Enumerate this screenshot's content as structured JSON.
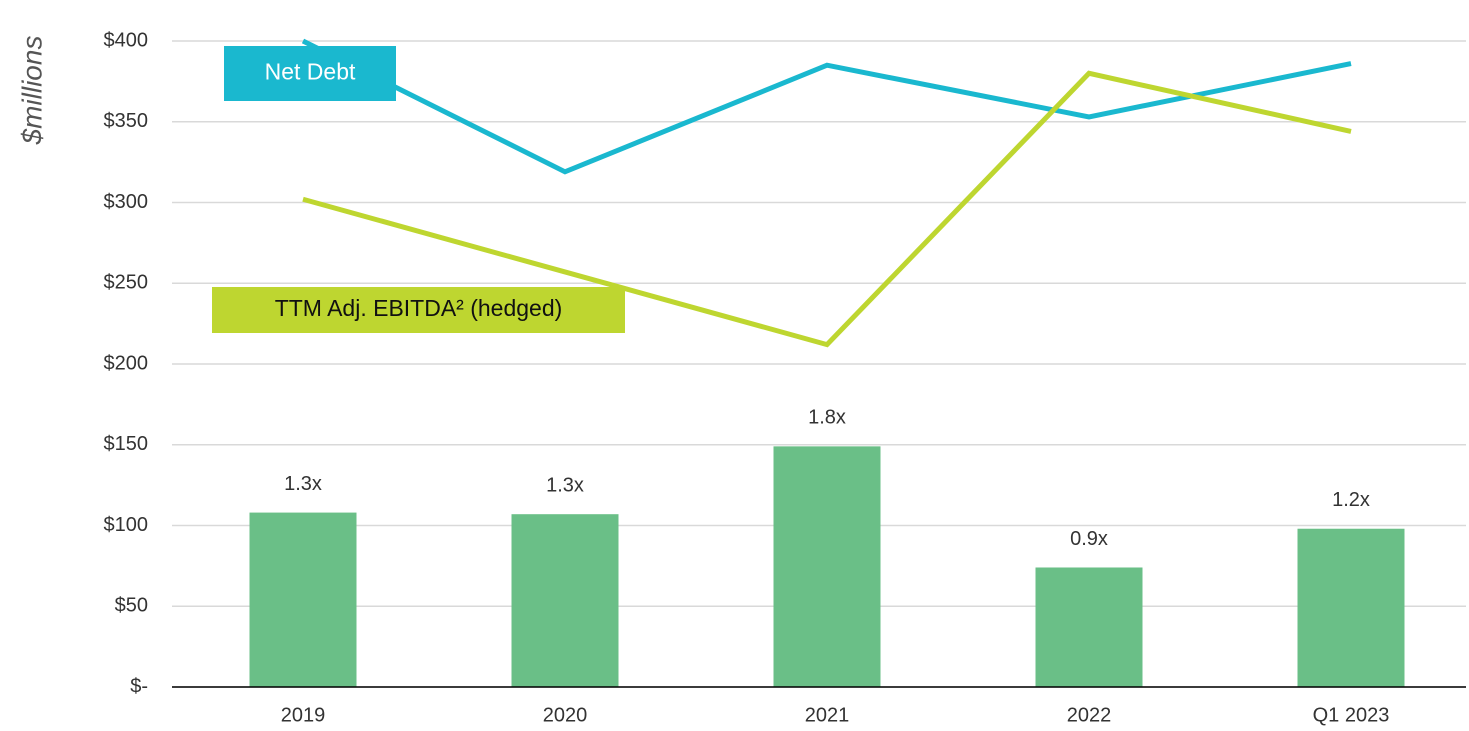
{
  "chart_data": {
    "type": "bar-line",
    "y_axis_label": "$millions",
    "categories": [
      "2019",
      "2020",
      "2021",
      "2022",
      "Q1 2023"
    ],
    "bars": {
      "color": "#6abf87",
      "values": [
        108,
        107,
        149,
        74,
        98
      ],
      "value_labels": [
        "1.3x",
        "1.3x",
        "1.8x",
        "0.9x",
        "1.2x"
      ]
    },
    "series": [
      {
        "name": "Net Debt",
        "color": "#1ab8cf",
        "values": [
          400,
          319,
          385,
          353,
          386
        ]
      },
      {
        "name": "TTM Adj. EBITDA² (hedged)",
        "color": "#bed630",
        "values": [
          302,
          257,
          212,
          380,
          344
        ]
      }
    ],
    "ylim": [
      0,
      400
    ],
    "yticks": [
      {
        "value": 0,
        "label": "$-"
      },
      {
        "value": 50,
        "label": "$50"
      },
      {
        "value": 100,
        "label": "$100"
      },
      {
        "value": 150,
        "label": "$150"
      },
      {
        "value": 200,
        "label": "$200"
      },
      {
        "value": 250,
        "label": "$250"
      },
      {
        "value": 300,
        "label": "$300"
      },
      {
        "value": 350,
        "label": "$350"
      },
      {
        "value": 400,
        "label": "$400"
      }
    ],
    "grid": true
  }
}
